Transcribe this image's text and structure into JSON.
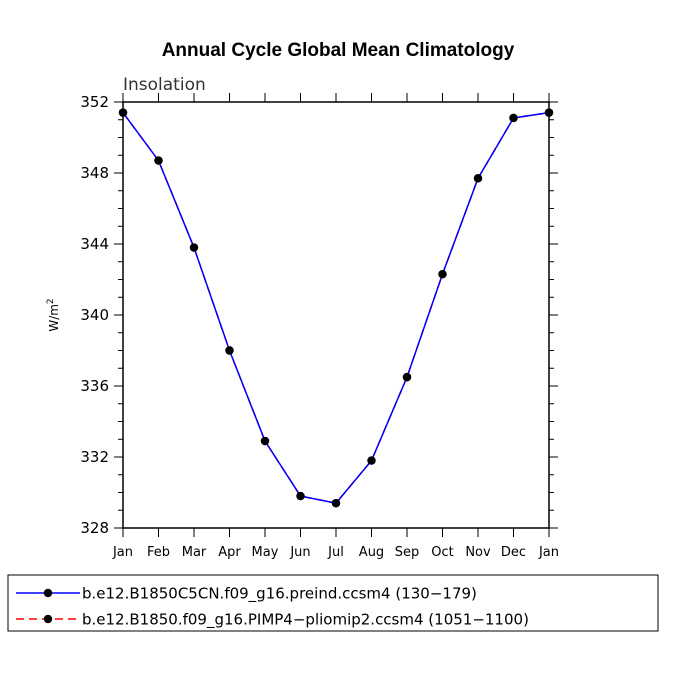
{
  "chart_data": {
    "type": "line",
    "title": "Annual Cycle Global Mean Climatology",
    "subtitle": "Insolation",
    "ylabel": "W/m",
    "ylabel_sup": "2",
    "xlabel": "",
    "categories": [
      "Jan",
      "Feb",
      "Mar",
      "Apr",
      "May",
      "Jun",
      "Jul",
      "Aug",
      "Sep",
      "Oct",
      "Nov",
      "Dec",
      "Jan"
    ],
    "ylim": [
      328,
      352
    ],
    "yticks": [
      328,
      332,
      336,
      340,
      344,
      348,
      352
    ],
    "series": [
      {
        "name": "b.e12.B1850C5CN.f09_g16.preind.ccsm4 (130−179)",
        "color": "#0000ff",
        "dash": "solid",
        "values": [
          351.4,
          348.7,
          343.8,
          338.0,
          332.9,
          329.8,
          329.4,
          331.8,
          336.5,
          342.3,
          347.7,
          351.1,
          351.4
        ]
      },
      {
        "name": "b.e12.B1850.f09_g16.PIMP4−pliomip2.ccsm4 (1051−1100)",
        "color": "#ff0000",
        "dash": "dashed",
        "values": [
          351.4,
          348.7,
          343.8,
          338.0,
          332.9,
          329.8,
          329.4,
          331.8,
          336.5,
          342.3,
          347.7,
          351.1,
          351.4
        ]
      }
    ],
    "legend_position": "bottom"
  }
}
